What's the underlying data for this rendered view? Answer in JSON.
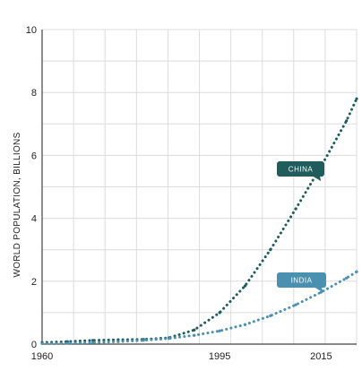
{
  "chart_data": {
    "type": "line",
    "ylabel": "WORLD POPULATION, BILLIONS",
    "xlabel": "",
    "xlim": [
      1960,
      2022
    ],
    "ylim": [
      0,
      10
    ],
    "grid": true,
    "x_ticks": [
      {
        "value": 1960,
        "label": "1960"
      },
      {
        "value": 1995,
        "label": "1995"
      },
      {
        "value": 2015,
        "label": "2015"
      }
    ],
    "y_ticks": [
      {
        "value": 0,
        "label": "0"
      },
      {
        "value": 2,
        "label": "2"
      },
      {
        "value": 4,
        "label": "4"
      },
      {
        "value": 6,
        "label": "6"
      },
      {
        "value": 8,
        "label": "8"
      },
      {
        "value": 10,
        "label": "10"
      }
    ],
    "series": [
      {
        "name": "CHINA",
        "color": "#1f5c5c",
        "x": [
          1960,
          1965,
          1970,
          1975,
          1980,
          1985,
          1990,
          1995,
          2000,
          2005,
          2010,
          2015,
          2020,
          2022
        ],
        "values": [
          0.05,
          0.08,
          0.12,
          0.14,
          0.15,
          0.2,
          0.45,
          1.0,
          1.85,
          3.0,
          4.3,
          5.65,
          7.1,
          7.8
        ]
      },
      {
        "name": "INDIA",
        "color": "#4a90b0",
        "x": [
          1960,
          1965,
          1970,
          1975,
          1980,
          1985,
          1990,
          1995,
          2000,
          2005,
          2010,
          2015,
          2020,
          2022
        ],
        "values": [
          0.02,
          0.03,
          0.05,
          0.08,
          0.12,
          0.18,
          0.28,
          0.42,
          0.62,
          0.9,
          1.25,
          1.65,
          2.1,
          2.3
        ]
      }
    ]
  }
}
